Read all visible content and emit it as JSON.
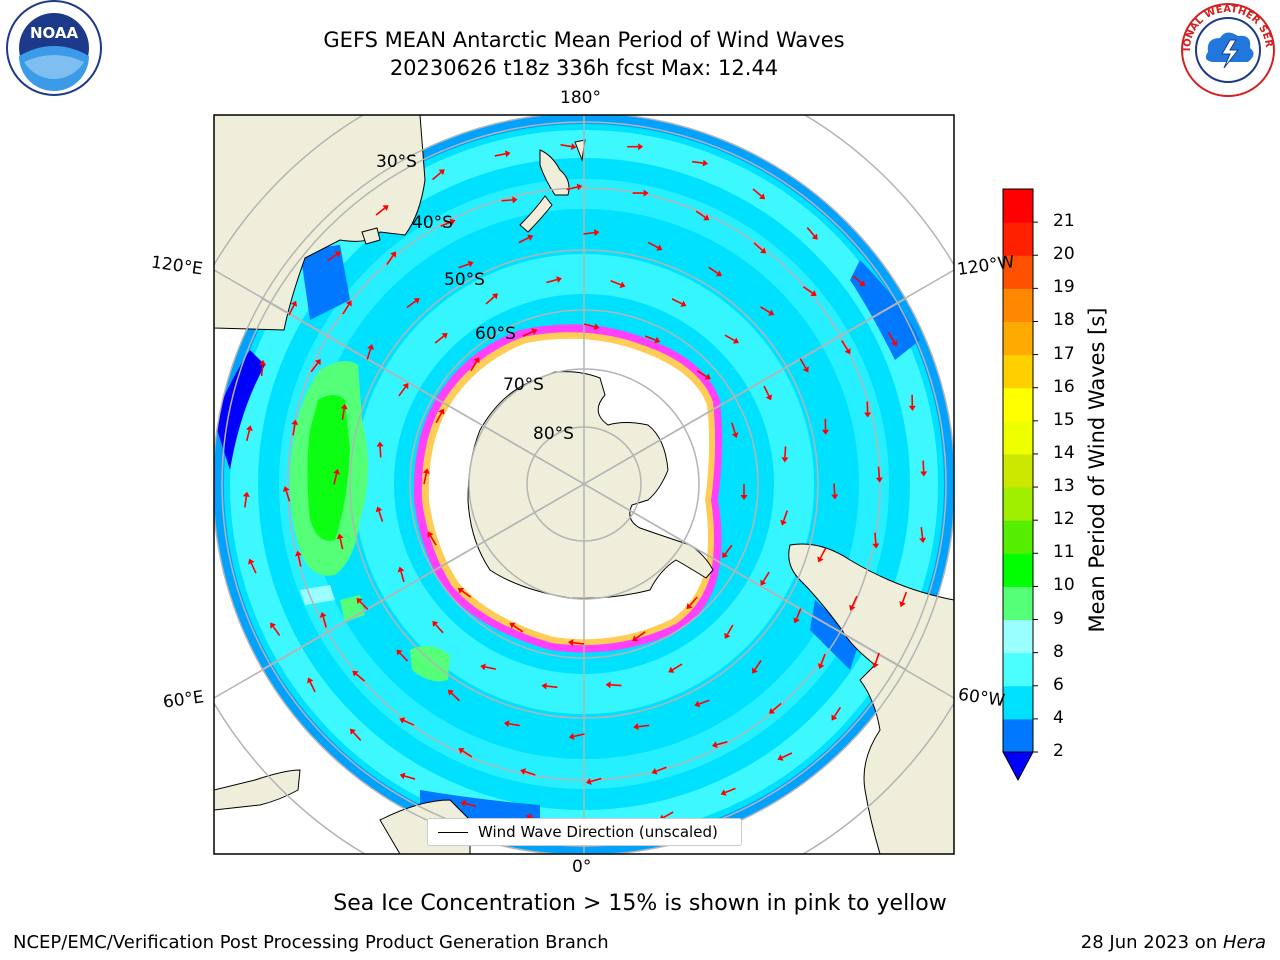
{
  "header": {
    "title_line1": "GEFS MEAN Antarctic Mean Period of Wind Waves",
    "title_line2": "20230626 t18z 336h fcst   Max: 12.44"
  },
  "logos": {
    "noaa_text": "NOAA",
    "nws_text": "NATIONAL WEATHER SERVICE"
  },
  "map": {
    "longitude_labels": {
      "top": "180°",
      "bottom": "0°",
      "left_upper": "120°E",
      "right_upper": "120°W",
      "left_lower": "60°E",
      "right_lower": "60°W"
    },
    "latitude_labels": [
      "30°S",
      "40°S",
      "50°S",
      "60°S",
      "70°S",
      "80°S"
    ],
    "legend_label": "Wind Wave Direction (unscaled)",
    "colors": {
      "land": "#efeedb",
      "ocean_low": "#00e6ff",
      "ocean_mid": "#52ffff",
      "ice": "#ffffff",
      "ice_edge": "#ff40ff",
      "arrow": "#ff0000",
      "grid": "#b4b4b4"
    }
  },
  "colorbar": {
    "label": "Mean Period of Wind Waves [s]",
    "ticks": [
      "2",
      "4",
      "6",
      "8",
      "9",
      "10",
      "11",
      "12",
      "13",
      "14",
      "15",
      "16",
      "17",
      "18",
      "19",
      "20",
      "21"
    ],
    "colors": [
      "#0000ff",
      "#0078ff",
      "#00e1ff",
      "#4cffff",
      "#99ffff",
      "#55ff77",
      "#00ff00",
      "#55ee00",
      "#a0ee00",
      "#cce800",
      "#eeff00",
      "#ffff00",
      "#ffd000",
      "#ffaa00",
      "#ff8800",
      "#ff5000",
      "#ff2000",
      "#ff0000"
    ]
  },
  "caption": "Sea Ice Concentration > 15% is shown in pink to yellow",
  "footer": {
    "left": "NCEP/EMC/Verification Post Processing Product Generation Branch",
    "date": "28 Jun 2023 on ",
    "host": "Hera"
  }
}
